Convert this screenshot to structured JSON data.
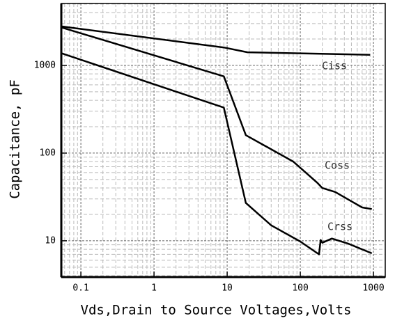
{
  "chart_data": {
    "type": "line",
    "xlabel": "Vds,Drain to Source Voltages,Volts",
    "ylabel": "Capacitance, pF",
    "xscale": "log",
    "yscale": "log",
    "xlim": [
      0.054,
      1450
    ],
    "ylim": [
      3.86,
      5080
    ],
    "xticks": [
      0.1,
      1,
      10,
      100,
      1000
    ],
    "yticks": [
      10,
      100,
      1000
    ],
    "grid": true,
    "minor_grid": true,
    "series": [
      {
        "name": "Ciss",
        "color": "#000000",
        "x": [
          0.055,
          9,
          19,
          900
        ],
        "values": [
          2780,
          1600,
          1410,
          1320
        ]
      },
      {
        "name": "Coss",
        "color": "#000000",
        "x": [
          0.055,
          9,
          18,
          80,
          170,
          200,
          300,
          700,
          950
        ],
        "values": [
          2700,
          750,
          160,
          80,
          46,
          40,
          36,
          24,
          23
        ]
      },
      {
        "name": "Crss",
        "color": "#000000",
        "x": [
          0.055,
          9,
          18,
          40,
          100,
          180,
          190,
          200,
          270,
          450,
          950
        ],
        "values": [
          1370,
          330,
          27,
          15,
          9.8,
          7,
          10.2,
          9.5,
          10.6,
          9.3,
          7.2
        ]
      }
    ]
  }
}
